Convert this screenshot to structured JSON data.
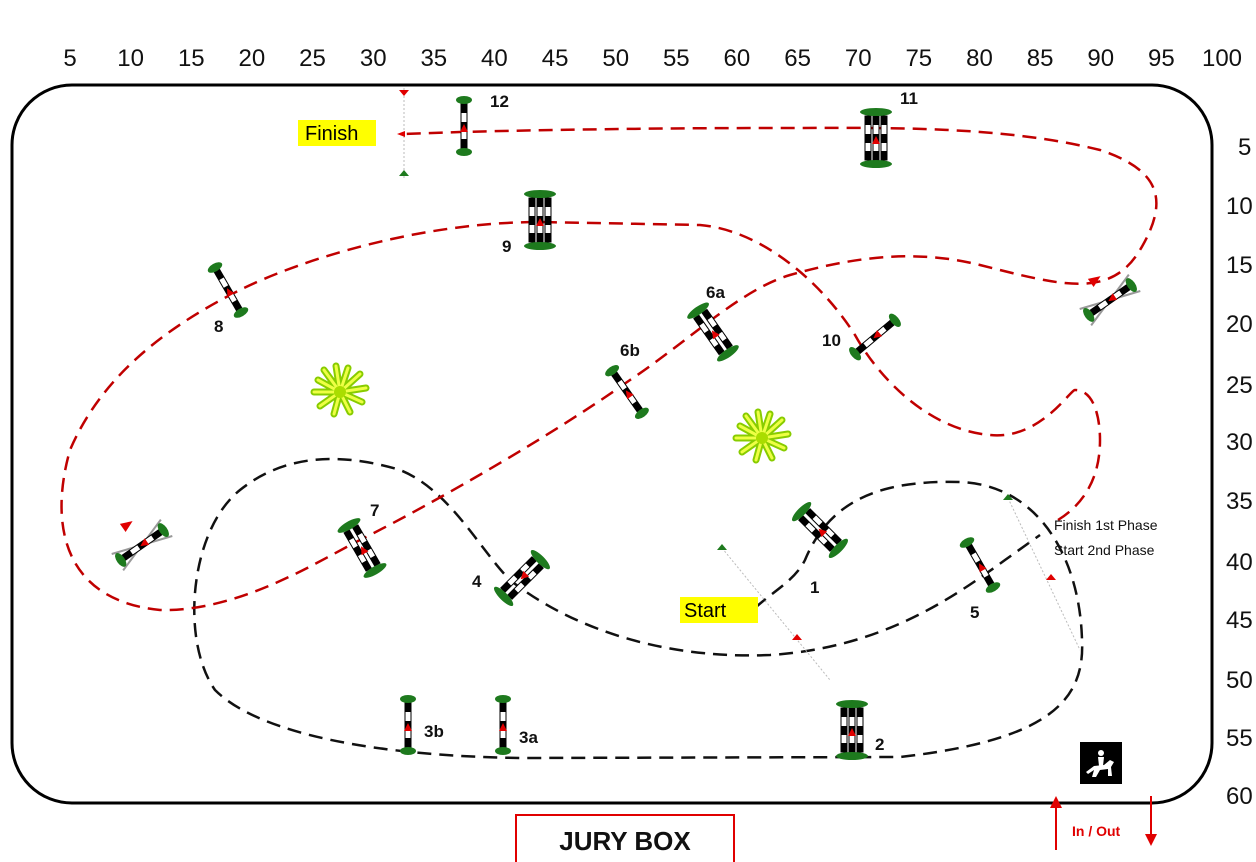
{
  "scale": {
    "top": [
      "5",
      "10",
      "15",
      "20",
      "25",
      "30",
      "35",
      "40",
      "45",
      "50",
      "55",
      "60",
      "65",
      "70",
      "75",
      "80",
      "85",
      "90",
      "95",
      "100"
    ],
    "right": [
      "5",
      "10",
      "15",
      "20",
      "25",
      "30",
      "35",
      "40",
      "45",
      "50",
      "55",
      "60"
    ]
  },
  "labels": {
    "finish": "Finish",
    "start": "Start",
    "phase1": "Finish 1st Phase",
    "phase2": "Start   2nd Phase",
    "jury": "JURY BOX",
    "in_out": "In / Out"
  },
  "jumps": {
    "j1": "1",
    "j2": "2",
    "j3a": "3a",
    "j3b": "3b",
    "j4": "4",
    "j5": "5",
    "j6a": "6a",
    "j6b": "6b",
    "j7": "7",
    "j8": "8",
    "j9": "9",
    "j10": "10",
    "j11": "11",
    "j12": "12"
  },
  "colors": {
    "phase1_path": "#111111",
    "phase2_path": "#c00000",
    "highlight": "#ffff00",
    "jury_border": "#e00000",
    "arrow": "#e00000",
    "standard": "#1e7a1e",
    "bush": "#ccff00"
  },
  "icons": [
    "horse-rider-icon",
    "up-arrow-icon",
    "down-arrow-icon",
    "bush-icon",
    "flag-icon"
  ]
}
